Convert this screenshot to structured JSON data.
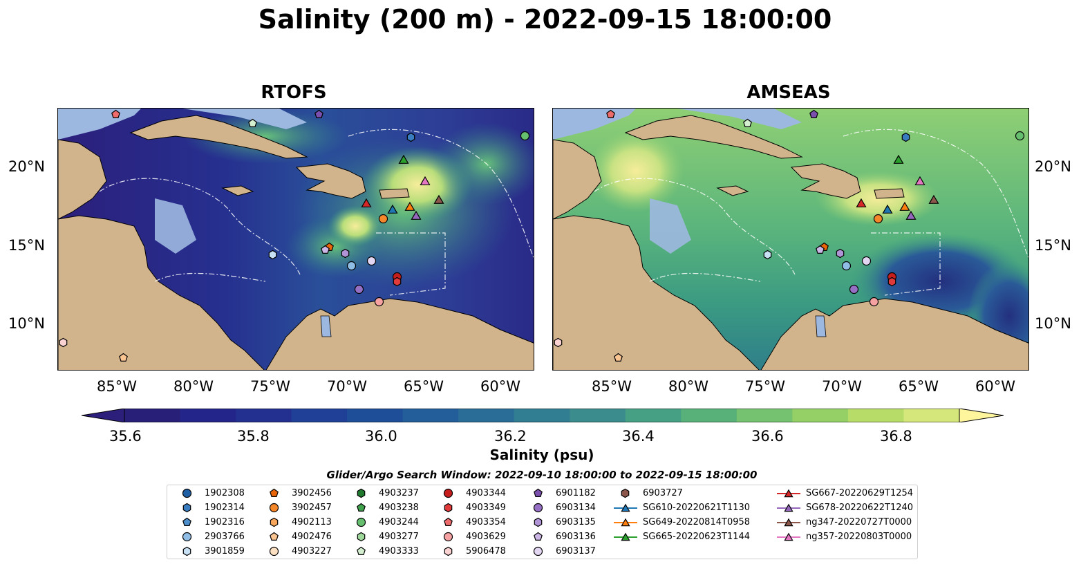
{
  "title": "Salinity (200 m) - 2022-09-15 18:00:00",
  "panels": [
    {
      "name": "RTOFS"
    },
    {
      "name": "AMSEAS"
    }
  ],
  "longitude_ticks": [
    "85°W",
    "80°W",
    "75°W",
    "70°W",
    "65°W",
    "60°W"
  ],
  "latitude_ticks": [
    "20°N",
    "15°N",
    "10°N"
  ],
  "map_extent": {
    "lon_min": -89,
    "lon_max": -58,
    "lat_min": 7,
    "lat_max": 23.8
  },
  "colorbar": {
    "label": "Salinity (psu)",
    "ticks": [
      "35.6",
      "35.8",
      "36.0",
      "36.2",
      "36.4",
      "36.6",
      "36.8"
    ],
    "range": [
      35.5,
      36.9
    ],
    "extend": "both"
  },
  "colors": {
    "land": "#d2b48c",
    "shallow_water": "#9db8e0",
    "frame": "#000000"
  },
  "search_window": "Glider/Argo Search Window: 2022-09-10 18:00:00 to 2022-09-15 18:00:00",
  "legend": [
    {
      "label": "1902308",
      "marker": "circle",
      "color": "#1f5fa6"
    },
    {
      "label": "1902314",
      "marker": "hexagon",
      "color": "#3a7cc0"
    },
    {
      "label": "1902316",
      "marker": "pentagon",
      "color": "#4d8ecc"
    },
    {
      "label": "2903766",
      "marker": "circle",
      "color": "#8fbde6"
    },
    {
      "label": "3901859",
      "marker": "hexagon",
      "color": "#c7e0f4"
    },
    {
      "label": "3902456",
      "marker": "pentagon",
      "color": "#e8650a"
    },
    {
      "label": "3902457",
      "marker": "circle",
      "color": "#f5872b"
    },
    {
      "label": "4902113",
      "marker": "hexagon",
      "color": "#f7a65b"
    },
    {
      "label": "4902476",
      "marker": "pentagon",
      "color": "#fbc592"
    },
    {
      "label": "4903227",
      "marker": "circle",
      "color": "#fde0c2"
    },
    {
      "label": "4903237",
      "marker": "hexagon",
      "color": "#1f7a2e"
    },
    {
      "label": "4903238",
      "marker": "pentagon",
      "color": "#3ea34c"
    },
    {
      "label": "4903244",
      "marker": "circle",
      "color": "#66bf6f"
    },
    {
      "label": "4903277",
      "marker": "hexagon",
      "color": "#9fd89b"
    },
    {
      "label": "4903333",
      "marker": "pentagon",
      "color": "#d3efcf"
    },
    {
      "label": "4903344",
      "marker": "circle",
      "color": "#c81d1d"
    },
    {
      "label": "4903349",
      "marker": "hexagon",
      "color": "#e03a3a"
    },
    {
      "label": "4903354",
      "marker": "pentagon",
      "color": "#ee6b6b"
    },
    {
      "label": "4903629",
      "marker": "circle",
      "color": "#f7a2a2"
    },
    {
      "label": "5906478",
      "marker": "hexagon",
      "color": "#fbd2d2"
    },
    {
      "label": "6901182",
      "marker": "pentagon",
      "color": "#7b4fae"
    },
    {
      "label": "6903134",
      "marker": "circle",
      "color": "#9670c4"
    },
    {
      "label": "6903135",
      "marker": "hexagon",
      "color": "#b194d6"
    },
    {
      "label": "6903136",
      "marker": "pentagon",
      "color": "#cbb6e6"
    },
    {
      "label": "6903137",
      "marker": "circle",
      "color": "#e2d6f2"
    },
    {
      "label": "6903727",
      "marker": "hexagon",
      "color": "#8c564b"
    },
    {
      "label": "SG610-20220621T1130",
      "marker": "triangle-line",
      "color": "#1f77b4"
    },
    {
      "label": "SG649-20220814T0958",
      "marker": "triangle-line",
      "color": "#ff7f0e"
    },
    {
      "label": "SG665-20220623T1144",
      "marker": "triangle-line",
      "color": "#2ca02c"
    },
    {
      "label": "SG667-20220629T1254",
      "marker": "triangle-line",
      "color": "#d62728"
    },
    {
      "label": "SG678-20220622T1240",
      "marker": "triangle-line",
      "color": "#9467bd"
    },
    {
      "label": "ng347-20220727T0000",
      "marker": "triangle-line",
      "color": "#8c564b"
    },
    {
      "label": "ng357-20220803T0000",
      "marker": "triangle-line",
      "color": "#e377c2"
    }
  ],
  "observations": [
    {
      "id": "4903354",
      "lon": -85.2,
      "lat": 23.4
    },
    {
      "id": "4903333",
      "lon": -76.3,
      "lat": 22.8
    },
    {
      "id": "6901182",
      "lon": -72.0,
      "lat": 23.4
    },
    {
      "id": "1902314",
      "lon": -66.0,
      "lat": 21.9
    },
    {
      "id": "4903244",
      "lon": -58.6,
      "lat": 22.0
    },
    {
      "id": "SG665-20220623T1144",
      "lon": -66.5,
      "lat": 20.5
    },
    {
      "id": "ng357-20220803T0000",
      "lon": -65.1,
      "lat": 19.1
    },
    {
      "id": "SG667-20220629T1254",
      "lon": -68.9,
      "lat": 17.7
    },
    {
      "id": "SG610-20220621T1130",
      "lon": -67.2,
      "lat": 17.3
    },
    {
      "id": "SG649-20220814T0958",
      "lon": -66.1,
      "lat": 17.5
    },
    {
      "id": "SG678-20220622T1240",
      "lon": -65.7,
      "lat": 16.9
    },
    {
      "id": "ng347-20220727T0000",
      "lon": -64.2,
      "lat": 17.9
    },
    {
      "id": "3902457",
      "lon": -67.8,
      "lat": 16.7
    },
    {
      "id": "3902456",
      "lon": -71.3,
      "lat": 14.9
    },
    {
      "id": "6903136",
      "lon": -71.6,
      "lat": 14.7
    },
    {
      "id": "6903135",
      "lon": -70.3,
      "lat": 14.5
    },
    {
      "id": "3901859",
      "lon": -75.0,
      "lat": 14.4
    },
    {
      "id": "2903766",
      "lon": -69.9,
      "lat": 13.7
    },
    {
      "id": "6903137",
      "lon": -68.6,
      "lat": 14.0
    },
    {
      "id": "4903344",
      "lon": -66.9,
      "lat": 13.0
    },
    {
      "id": "4903349",
      "lon": -66.9,
      "lat": 12.7
    },
    {
      "id": "6903134",
      "lon": -69.4,
      "lat": 12.2
    },
    {
      "id": "4903629",
      "lon": -68.1,
      "lat": 11.4
    },
    {
      "id": "5906478",
      "lon": -88.6,
      "lat": 8.8
    },
    {
      "id": "4902476",
      "lon": -84.7,
      "lat": 7.8
    }
  ]
}
